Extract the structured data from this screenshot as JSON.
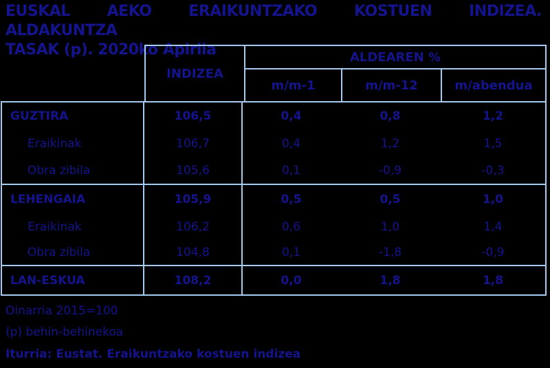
{
  "title": {
    "line1": "EUSKAL AEKO ERAIKUNTZAKO KOSTUEN INDIZEA. ALDAKUNTZA",
    "line2": "TASAK (p). 2020ko Apirila"
  },
  "table": {
    "index_header": "INDIZEA",
    "group_header": "ALDEAREN %",
    "subcols": {
      "mm1": "m/m-1",
      "mm12": "m/m-12",
      "mabendua": "m/abendua"
    },
    "rows": [
      {
        "label": "GUZTIRA",
        "indizea": "106,5",
        "mm1": "0,4",
        "mm12": "0,8",
        "mabendua": "1,2"
      },
      {
        "label": "Eraikinak",
        "indizea": "106,7",
        "mm1": "0,4",
        "mm12": "1,2",
        "mabendua": "1,5"
      },
      {
        "label": "Obra zibila",
        "indizea": "105,6",
        "mm1": "0,1",
        "mm12": "-0,9",
        "mabendua": "-0,3"
      },
      {
        "label": "LEHENGAIA",
        "indizea": "105,9",
        "mm1": "0,5",
        "mm12": "0,5",
        "mabendua": "1,0"
      },
      {
        "label": "Eraikinak",
        "indizea": "106,2",
        "mm1": "0,6",
        "mm12": "1,0",
        "mabendua": "1,4"
      },
      {
        "label": "Obra zibila",
        "indizea": "104,8",
        "mm1": "0,1",
        "mm12": "-1,8",
        "mabendua": "-0,9"
      },
      {
        "label": "LAN-ESKUA",
        "indizea": "108,2",
        "mm1": "0,0",
        "mm12": "1,8",
        "mabendua": "1,8"
      }
    ]
  },
  "footer": {
    "base_note": "Oinarria 2015=100",
    "provisional_note": "(p) behin-behinekoa",
    "source": "Iturria: Eustat. Eraikuntzako kostuen indizea"
  },
  "colors": {
    "background": "#000000",
    "text": "#14148e",
    "border": "#a5cbf2"
  }
}
